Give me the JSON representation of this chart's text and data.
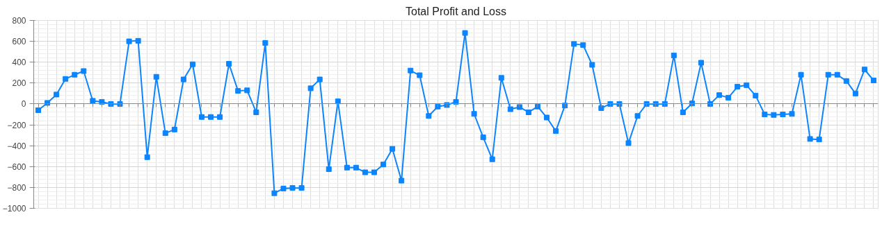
{
  "chart_data": {
    "type": "line",
    "title": "Total Profit and Loss",
    "categories": [
      null,
      null,
      null,
      null,
      null,
      null,
      null,
      null,
      null,
      null,
      null,
      null,
      null,
      null,
      null,
      null,
      null,
      null,
      null,
      null,
      null,
      null,
      null,
      null,
      null,
      null,
      null,
      null,
      null,
      null,
      null,
      null,
      null,
      null,
      null,
      null,
      null,
      null,
      null,
      null,
      null,
      null,
      null,
      null,
      null,
      null,
      null,
      null,
      null,
      null,
      null,
      null,
      null,
      null,
      null,
      null,
      null,
      null,
      null,
      null,
      null,
      null,
      null,
      null,
      null,
      null,
      null,
      null,
      null,
      null,
      null,
      null,
      null,
      null,
      null,
      null,
      null,
      null,
      null,
      null,
      null,
      null,
      null,
      null,
      null,
      null,
      null,
      null,
      null,
      null,
      null,
      null,
      null
    ],
    "series": [
      {
        "color": "#0a84ff",
        "values": [
          -60,
          10,
          90,
          240,
          280,
          315,
          30,
          20,
          0,
          0,
          600,
          605,
          -510,
          260,
          -280,
          -245,
          235,
          380,
          -125,
          -125,
          -125,
          385,
          125,
          130,
          -80,
          585,
          -855,
          -810,
          -805,
          -805,
          150,
          235,
          -625,
          25,
          -610,
          -610,
          -655,
          -655,
          -580,
          -430,
          -735,
          320,
          275,
          -115,
          -25,
          -10,
          20,
          680,
          -95,
          -320,
          -530,
          250,
          -50,
          -30,
          -80,
          -25,
          -130,
          -260,
          -15,
          575,
          565,
          375,
          -40,
          0,
          0,
          -375,
          -115,
          0,
          0,
          0,
          465,
          -80,
          5,
          395,
          0,
          85,
          60,
          165,
          180,
          80,
          -100,
          -105,
          -100,
          -95,
          280,
          -335,
          -340,
          280,
          280,
          220,
          100,
          330,
          225
        ]
      }
    ],
    "ylim": [
      -1000,
      800
    ],
    "yticks": [
      -1000,
      -800,
      -600,
      -400,
      -200,
      0,
      200,
      400,
      600,
      800
    ],
    "grid": true,
    "marker": "square",
    "line_style": "solid",
    "tick_labels": "y"
  }
}
